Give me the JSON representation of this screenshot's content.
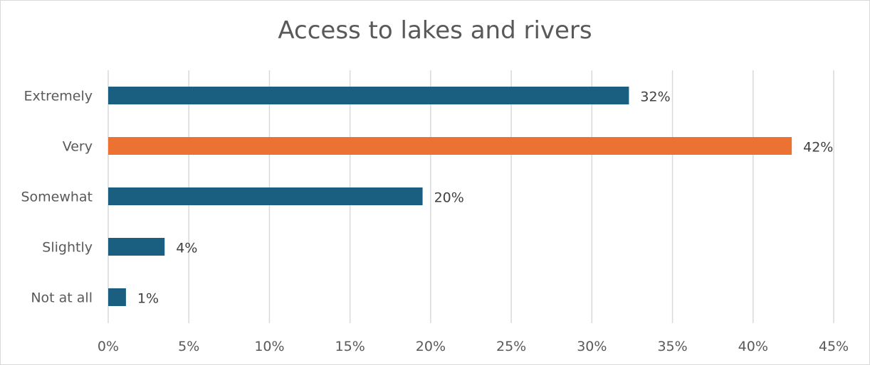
{
  "chart_data": {
    "type": "bar",
    "orientation": "horizontal",
    "title": "Access to lakes and rivers",
    "categories": [
      "Extremely",
      "Very",
      "Somewhat",
      "Slightly",
      "Not at all"
    ],
    "values": [
      32.3,
      42.4,
      19.5,
      3.5,
      1.1
    ],
    "data_labels": [
      "32%",
      "42%",
      "20%",
      "4%",
      "1%"
    ],
    "xlim": [
      0,
      45
    ],
    "x_ticks": [
      0,
      5,
      10,
      15,
      20,
      25,
      30,
      35,
      40,
      45
    ],
    "x_tick_labels": [
      "0%",
      "5%",
      "10%",
      "15%",
      "20%",
      "25%",
      "30%",
      "35%",
      "40%",
      "45%"
    ],
    "grid": true,
    "colors": {
      "default": "#1a5f80",
      "highlight": "#eb7233",
      "highlight_category": "Very",
      "grid": "#d9d9d9",
      "text": "#595959"
    }
  }
}
